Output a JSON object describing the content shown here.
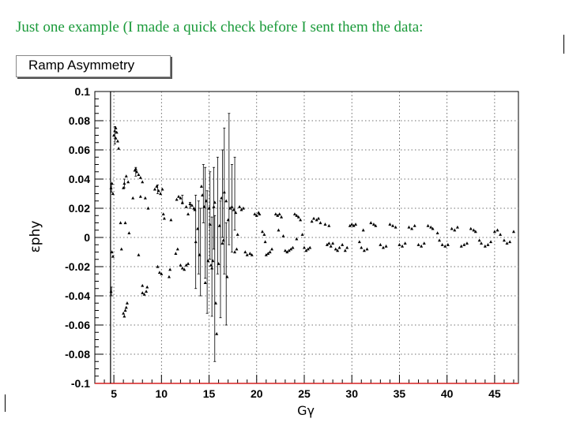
{
  "slide": {
    "title": "Just one example (I made a quick check before I sent them the data:"
  },
  "colors": {
    "title": "#1a9a3a",
    "axis_red": "#d62020"
  },
  "chart_data": {
    "type": "scatter",
    "title": "Ramp Asymmetry",
    "xlabel": "Gγ",
    "ylabel": "εphy",
    "xlim": [
      3,
      47.5
    ],
    "ylim": [
      -0.1,
      0.1
    ],
    "grid": true,
    "vertical_marker_x": 4.65,
    "x_ticks": [
      5,
      10,
      15,
      20,
      25,
      30,
      35,
      40,
      45
    ],
    "y_ticks": [
      0.1,
      0.08,
      0.06,
      0.04,
      0.02,
      0,
      -0.02,
      -0.04,
      -0.06,
      -0.08,
      -0.1
    ],
    "x_tick_labels": [
      "5",
      "10",
      "15",
      "20",
      "25",
      "30",
      "35",
      "40",
      "45"
    ],
    "y_tick_labels": [
      "0.1",
      "0.08",
      "0.06",
      "0.04",
      "0.02",
      "0",
      "-0.02",
      "-0.04",
      "-0.06",
      "-0.08",
      "-0.1"
    ],
    "series": [
      {
        "marker": "triangle",
        "points": [
          [
            4.7,
            0.034
          ],
          [
            4.8,
            0.037
          ],
          [
            4.9,
            0.03
          ],
          [
            4.7,
            -0.037
          ],
          [
            4.8,
            -0.01
          ],
          [
            4.9,
            -0.013
          ],
          [
            5.0,
            0.07
          ],
          [
            5.1,
            0.073
          ],
          [
            5.2,
            0.068
          ],
          [
            5.3,
            0.072
          ],
          [
            5.4,
            0.066
          ],
          [
            5.5,
            0.061
          ],
          [
            5.2,
            0.075
          ],
          [
            5.7,
            0.01
          ],
          [
            5.8,
            -0.008
          ],
          [
            6.0,
            -0.052
          ],
          [
            6.1,
            -0.054
          ],
          [
            6.2,
            -0.05
          ],
          [
            6.3,
            -0.048
          ],
          [
            6.4,
            -0.045
          ],
          [
            6.3,
            0.042
          ],
          [
            6.5,
            0.038
          ],
          [
            6.1,
            0.037
          ],
          [
            6.0,
            0.034
          ],
          [
            6.6,
            0.003
          ],
          [
            6.2,
            0.01
          ],
          [
            7.2,
            0.046
          ],
          [
            7.4,
            0.045
          ],
          [
            7.6,
            0.043
          ],
          [
            7.8,
            0.041
          ],
          [
            7.3,
            0.047
          ],
          [
            7.0,
            0.027
          ],
          [
            7.6,
            -0.012
          ],
          [
            7.8,
            0.028
          ],
          [
            8.0,
            0.038
          ],
          [
            8.3,
            0.027
          ],
          [
            8.6,
            0.02
          ],
          [
            8.0,
            -0.033
          ],
          [
            8.0,
            -0.038
          ],
          [
            8.2,
            -0.039
          ],
          [
            8.4,
            -0.037
          ],
          [
            8.5,
            -0.034
          ],
          [
            9.3,
            0.033
          ],
          [
            9.5,
            0.035
          ],
          [
            9.7,
            0.032
          ],
          [
            9.9,
            0.03
          ],
          [
            10.1,
            0.033
          ],
          [
            9.6,
            -0.02
          ],
          [
            9.8,
            -0.024
          ],
          [
            10.0,
            -0.025
          ],
          [
            10.2,
            0.016
          ],
          [
            10.3,
            0.013
          ],
          [
            10.8,
            -0.027
          ],
          [
            10.9,
            -0.022
          ],
          [
            11.0,
            0.012
          ],
          [
            11.6,
            0.026
          ],
          [
            11.8,
            0.028
          ],
          [
            12.0,
            0.027
          ],
          [
            12.2,
            0.024
          ],
          [
            12.6,
            0.021
          ],
          [
            11.5,
            -0.011
          ],
          [
            11.7,
            -0.008
          ],
          [
            12.0,
            -0.019
          ],
          [
            12.2,
            -0.021
          ],
          [
            12.4,
            -0.022
          ],
          [
            12.6,
            -0.019
          ],
          [
            12.8,
            -0.018
          ],
          [
            13.0,
            0.023
          ],
          [
            13.2,
            0.022
          ],
          [
            13.4,
            0.02
          ],
          [
            12.8,
            0.016
          ],
          [
            13.5,
            0.019
          ],
          [
            13.6,
            -0.003
          ],
          [
            13.8,
            0.006
          ],
          [
            14.0,
            -0.012
          ],
          [
            14.2,
            0.035
          ],
          [
            14.3,
            0.029
          ],
          [
            14.5,
            0.021
          ],
          [
            14.7,
            0.025
          ],
          [
            14.9,
            -0.016
          ],
          [
            14.6,
            -0.031
          ],
          [
            15.0,
            0.02
          ],
          [
            15.1,
            0.009
          ],
          [
            15.2,
            -0.019
          ],
          [
            15.3,
            -0.021
          ],
          [
            15.4,
            -0.016
          ],
          [
            15.5,
            0.021
          ],
          [
            15.6,
            0.024
          ],
          [
            15.7,
            -0.045
          ],
          [
            15.8,
            -0.066
          ],
          [
            16.0,
            -0.018
          ],
          [
            16.1,
            0.008
          ],
          [
            16.3,
            0.027
          ],
          [
            16.4,
            -0.004
          ],
          [
            16.5,
            -0.002
          ],
          [
            16.6,
            0.031
          ],
          [
            16.8,
            0.025
          ],
          [
            16.9,
            -0.027
          ],
          [
            17.0,
            0.012
          ],
          [
            17.2,
            0.02
          ],
          [
            17.4,
            0.021
          ],
          [
            17.6,
            0.019
          ],
          [
            17.8,
            0.017
          ],
          [
            17.7,
            -0.01
          ],
          [
            17.9,
            -0.008
          ],
          [
            18.2,
            0.021
          ],
          [
            18.4,
            0.019
          ],
          [
            18.6,
            0.02
          ],
          [
            18.0,
            0.002
          ],
          [
            18.8,
            -0.01
          ],
          [
            19.0,
            -0.012
          ],
          [
            19.3,
            -0.011
          ],
          [
            19.5,
            -0.012
          ],
          [
            19.8,
            0.016
          ],
          [
            20.0,
            0.015
          ],
          [
            20.2,
            0.017
          ],
          [
            20.3,
            0.016
          ],
          [
            20.6,
            0.004
          ],
          [
            20.8,
            0.002
          ],
          [
            20.9,
            -0.003
          ],
          [
            21.0,
            -0.012
          ],
          [
            21.2,
            -0.011
          ],
          [
            21.4,
            -0.01
          ],
          [
            21.6,
            -0.008
          ],
          [
            22.0,
            0.016
          ],
          [
            22.2,
            0.015
          ],
          [
            22.4,
            0.016
          ],
          [
            22.6,
            0.014
          ],
          [
            22.3,
            0.005
          ],
          [
            22.8,
            0.001
          ],
          [
            23.0,
            -0.009
          ],
          [
            23.2,
            -0.01
          ],
          [
            23.4,
            -0.009
          ],
          [
            23.6,
            -0.008
          ],
          [
            23.8,
            -0.007
          ],
          [
            24.0,
            0.016
          ],
          [
            24.2,
            0.015
          ],
          [
            24.4,
            0.014
          ],
          [
            24.6,
            0.012
          ],
          [
            24.2,
            -0.001
          ],
          [
            24.8,
            0.002
          ],
          [
            25.0,
            -0.007
          ],
          [
            25.2,
            -0.009
          ],
          [
            25.4,
            -0.008
          ],
          [
            25.6,
            -0.007
          ],
          [
            25.8,
            0.011
          ],
          [
            26.0,
            0.013
          ],
          [
            26.3,
            0.012
          ],
          [
            26.5,
            0.013
          ],
          [
            26.7,
            0.01
          ],
          [
            27.2,
            0.009
          ],
          [
            27.6,
            0.008
          ],
          [
            27.4,
            -0.005
          ],
          [
            27.6,
            -0.004
          ],
          [
            27.8,
            -0.006
          ],
          [
            28.0,
            -0.004
          ],
          [
            28.3,
            -0.008
          ],
          [
            28.5,
            -0.009
          ],
          [
            28.7,
            -0.007
          ],
          [
            29.0,
            -0.005
          ],
          [
            29.3,
            -0.009
          ],
          [
            29.5,
            -0.007
          ],
          [
            29.8,
            0.008
          ],
          [
            30.0,
            0.009
          ],
          [
            30.2,
            0.008
          ],
          [
            30.4,
            0.009
          ],
          [
            31.2,
            0.005
          ],
          [
            30.8,
            -0.003
          ],
          [
            31.0,
            -0.007
          ],
          [
            31.3,
            -0.009
          ],
          [
            31.6,
            -0.008
          ],
          [
            32.0,
            0.01
          ],
          [
            32.3,
            0.009
          ],
          [
            32.5,
            0.008
          ],
          [
            33.0,
            -0.005
          ],
          [
            33.3,
            -0.007
          ],
          [
            33.6,
            -0.006
          ],
          [
            34.0,
            0.009
          ],
          [
            34.3,
            0.008
          ],
          [
            34.6,
            0.007
          ],
          [
            35.0,
            -0.005
          ],
          [
            35.3,
            -0.006
          ],
          [
            35.6,
            -0.004
          ],
          [
            36.0,
            0.007
          ],
          [
            36.3,
            0.006
          ],
          [
            36.6,
            0.008
          ],
          [
            37.0,
            -0.005
          ],
          [
            37.3,
            -0.006
          ],
          [
            37.6,
            -0.004
          ],
          [
            38.0,
            0.008
          ],
          [
            38.3,
            0.007
          ],
          [
            38.5,
            0.006
          ],
          [
            39.0,
            0.003
          ],
          [
            39.2,
            -0.002
          ],
          [
            39.5,
            -0.005
          ],
          [
            39.8,
            -0.006
          ],
          [
            40.1,
            -0.005
          ],
          [
            40.5,
            0.006
          ],
          [
            40.8,
            0.005
          ],
          [
            41.1,
            0.007
          ],
          [
            41.5,
            -0.006
          ],
          [
            41.8,
            -0.005
          ],
          [
            42.1,
            -0.004
          ],
          [
            42.5,
            0.006
          ],
          [
            42.8,
            0.005
          ],
          [
            43.0,
            0.004
          ],
          [
            43.4,
            -0.002
          ],
          [
            43.6,
            -0.004
          ],
          [
            44.0,
            -0.006
          ],
          [
            44.3,
            -0.005
          ],
          [
            44.6,
            -0.003
          ],
          [
            45.0,
            0.004
          ],
          [
            45.3,
            0.005
          ],
          [
            45.6,
            0.002
          ],
          [
            46.0,
            -0.002
          ],
          [
            46.3,
            -0.004
          ],
          [
            46.6,
            -0.003
          ],
          [
            47.0,
            0.004
          ]
        ],
        "error_bars": [
          [
            4.75,
            0.034,
            0.003
          ],
          [
            4.75,
            -0.037,
            0.003
          ],
          [
            5.1,
            0.07,
            0.006
          ],
          [
            6.1,
            0.037,
            0.003
          ],
          [
            7.3,
            0.045,
            0.003
          ],
          [
            9.6,
            0.033,
            0.003
          ],
          [
            12.2,
            0.026,
            0.003
          ],
          [
            13.0,
            0.022,
            0.002
          ],
          [
            13.6,
            -0.003,
            0.032
          ],
          [
            13.9,
            0.0,
            0.025
          ],
          [
            14.1,
            -0.01,
            0.03
          ],
          [
            14.4,
            0.03,
            0.02
          ],
          [
            14.6,
            0.01,
            0.038
          ],
          [
            14.8,
            -0.01,
            0.042
          ],
          [
            15.1,
            0.015,
            0.03
          ],
          [
            15.3,
            -0.02,
            0.034
          ],
          [
            15.5,
            0.02,
            0.028
          ],
          [
            15.6,
            -0.035,
            0.05
          ],
          [
            15.9,
            0.015,
            0.04
          ],
          [
            16.2,
            -0.015,
            0.04
          ],
          [
            16.4,
            0.03,
            0.03
          ],
          [
            16.6,
            0.025,
            0.05
          ],
          [
            16.8,
            -0.025,
            0.035
          ],
          [
            17.1,
            0.04,
            0.045
          ],
          [
            17.4,
            0.02,
            0.03
          ],
          [
            17.7,
            0.03,
            0.025
          ]
        ]
      }
    ]
  }
}
